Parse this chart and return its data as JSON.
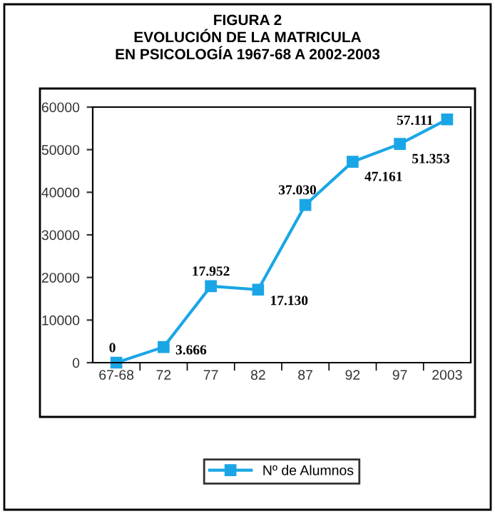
{
  "chart_data": {
    "type": "line",
    "title": "FIGURA 2\nEVOLUCIÓN DE LA MATRICULA\nEN PSICOLOGÍA 1967-68 A 2002-2003",
    "categories": [
      "67-68",
      "72",
      "77",
      "82",
      "87",
      "92",
      "97",
      "2003"
    ],
    "series": [
      {
        "name": "Nº de Alumnos",
        "color": "#1aa6e6",
        "values": [
          0,
          3666,
          17952,
          17130,
          37030,
          47161,
          51353,
          57111
        ],
        "value_labels": [
          "0",
          "3.666",
          "17.952",
          "17.130",
          "37.030",
          "47.161",
          "51.353",
          "57.111"
        ]
      }
    ],
    "ylim": [
      0,
      60000
    ],
    "yticks": [
      0,
      10000,
      20000,
      30000,
      40000,
      50000,
      60000
    ],
    "grid": false,
    "legend": "bottom",
    "marker": "square",
    "line_style": "solid"
  }
}
